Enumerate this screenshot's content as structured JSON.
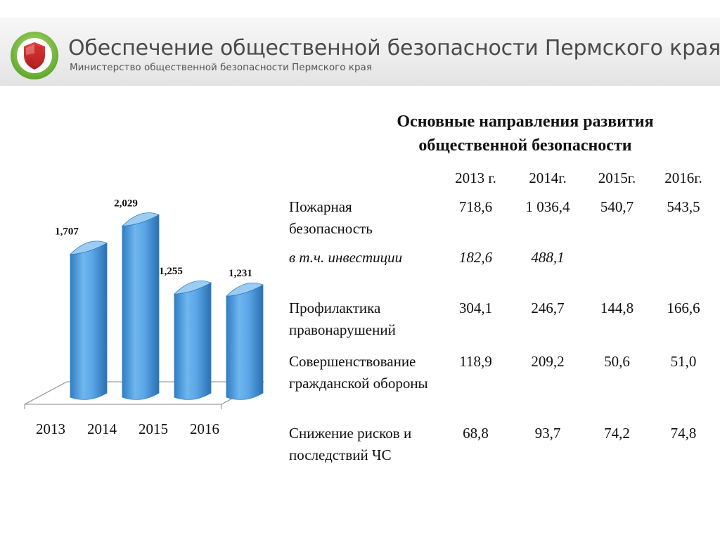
{
  "header": {
    "title": "Обеспечение общественной безопасности Пермского края",
    "subtitle": "Министерство общественной безопасности Пермского края",
    "logo_icon": "shield-icon"
  },
  "main_title": {
    "line1": "Основные направления развития",
    "line2": "общественной безопасности"
  },
  "table": {
    "headers": [
      "2013 г.",
      "2014г.",
      "2015г.",
      "2016г."
    ],
    "rows": [
      {
        "label": "Пожарная безопасность",
        "values": [
          "718,6",
          "1 036,4",
          "540,7",
          "543,5"
        ],
        "italic": false
      },
      {
        "label": "в т.ч. инвестиции",
        "values": [
          "182,6",
          "488,1",
          "",
          ""
        ],
        "italic": true
      },
      {
        "label": "Профилактика правонарушений",
        "values": [
          "304,1",
          "246,7",
          "144,8",
          "166,6"
        ],
        "italic": false
      },
      {
        "label": "Совершенствование гражданской обороны",
        "values": [
          "118,9",
          "209,2",
          "50,6",
          "51,0"
        ],
        "italic": false
      },
      {
        "label": "Снижение рисков и последствий ЧС",
        "values": [
          "68,8",
          "93,7",
          "74,2",
          "74,8"
        ],
        "italic": false
      }
    ]
  },
  "chart_data": {
    "type": "bar",
    "style": "3d-cylinder",
    "categories": [
      "2013",
      "2014",
      "2015",
      "2016"
    ],
    "values": [
      1.707,
      2.029,
      1.255,
      1.231
    ],
    "data_labels": [
      "1,707",
      "2,029",
      "1,255",
      "1,231"
    ],
    "title": "",
    "xlabel": "",
    "ylabel": "",
    "ylim": [
      0,
      2.2
    ],
    "grid": false,
    "legend": "none",
    "colors": {
      "bar": "#5aa6e6",
      "bar_dark": "#2f7ec4",
      "bar_top": "#9dccf2"
    }
  }
}
